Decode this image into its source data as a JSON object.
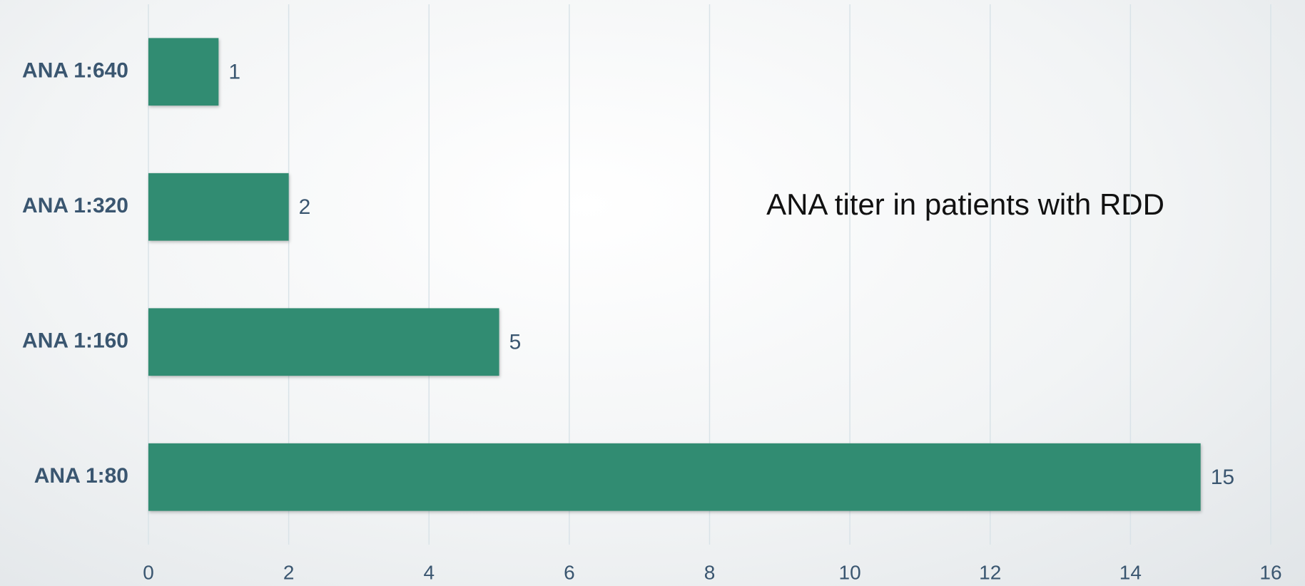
{
  "chart_data": {
    "type": "barh",
    "title": "ANA titer in patients with RDD",
    "categories": [
      "ANA 1:640",
      "ANA 1:320",
      "ANA 1:160",
      "ANA 1:80"
    ],
    "values": [
      1,
      2,
      5,
      15
    ],
    "color": "#318c72",
    "xlim": [
      0,
      16
    ],
    "xticks": [
      0,
      2,
      4,
      6,
      8,
      10,
      12,
      14,
      16
    ],
    "grid": true
  }
}
